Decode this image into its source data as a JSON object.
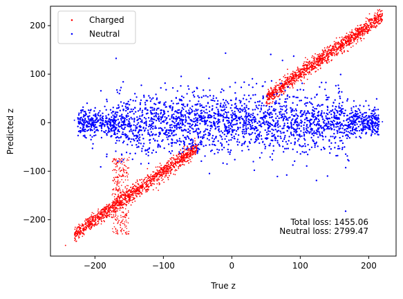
{
  "chart_data": {
    "type": "scatter",
    "title": "",
    "xlabel": "True z",
    "ylabel": "Predicted z",
    "xlim": [
      -265,
      240
    ],
    "ylim": [
      -275,
      240
    ],
    "xticks": [
      -200,
      -100,
      0,
      100,
      200
    ],
    "yticks": [
      -200,
      -100,
      0,
      100,
      200
    ],
    "tick_labels_x": [
      "−200",
      "−100",
      "0",
      "100",
      "200"
    ],
    "tick_labels_y": [
      "−200",
      "−100",
      "0",
      "100",
      "200"
    ],
    "grid": false,
    "legend_position": "top-left",
    "series": [
      {
        "name": "Charged",
        "color": "#ff0000",
        "description_trend": "points lie along the diagonal y = x from about (-220,-230) to (215,215), with a dense band",
        "x": [
          -243,
          -220,
          -210,
          -200,
          -190,
          -180,
          -170,
          -160,
          -150,
          -140,
          -130,
          -120,
          -110,
          -100,
          -90,
          -80,
          -70,
          -60,
          60,
          70,
          80,
          90,
          100,
          110,
          120,
          130,
          140,
          150,
          160,
          170,
          180,
          190,
          200,
          210,
          218
        ],
        "y": [
          -253,
          -225,
          -210,
          -200,
          -188,
          -180,
          -170,
          -160,
          -152,
          -140,
          -130,
          -120,
          -110,
          -100,
          -92,
          -80,
          -72,
          -62,
          62,
          72,
          80,
          92,
          100,
          110,
          120,
          130,
          140,
          150,
          162,
          170,
          180,
          190,
          200,
          210,
          212
        ]
      },
      {
        "name": "Neutral",
        "color": "#0000ff",
        "description_trend": "dense horizontal blob centered at y = 0 spanning x from about -230 to 220, y from about -140 to 140",
        "x": [
          -230,
          -200,
          -175,
          -150,
          -125,
          -100,
          -75,
          -50,
          -25,
          0,
          25,
          50,
          75,
          100,
          125,
          150,
          175,
          200,
          220
        ],
        "y": [
          5,
          0,
          -5,
          2,
          0,
          3,
          -2,
          5,
          0,
          2,
          -3,
          0,
          4,
          0,
          -2,
          3,
          0,
          -5,
          2
        ]
      }
    ],
    "annotations": [
      "Total loss: 1455.06",
      "Neutral loss: 2799.47"
    ]
  }
}
